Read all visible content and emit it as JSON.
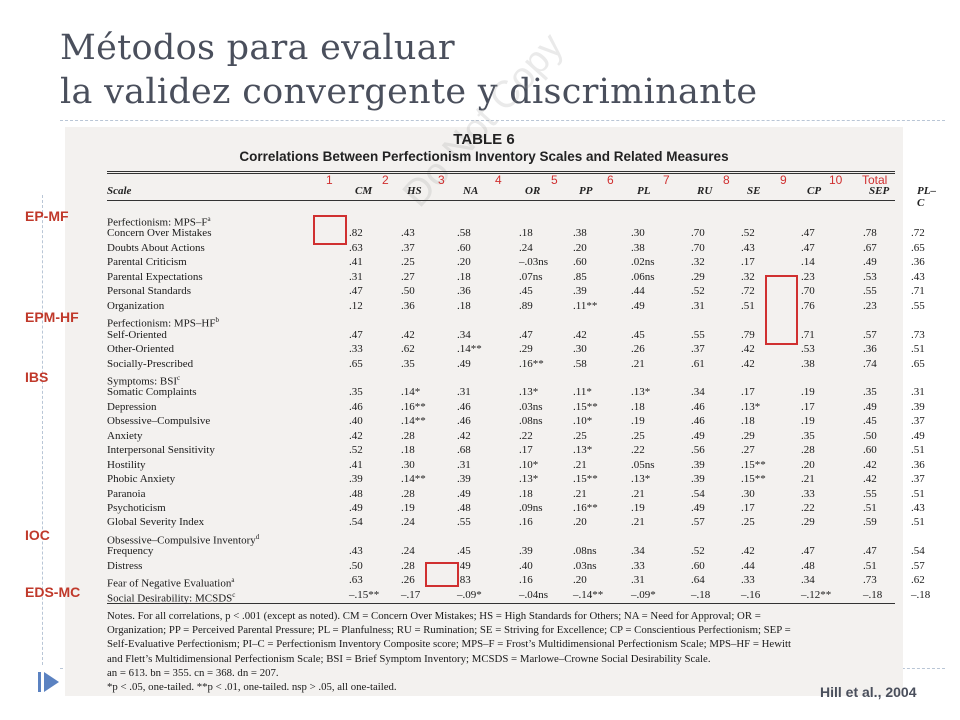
{
  "slide": {
    "title_line1": "Métodos para evaluar",
    "title_line2": "la validez convergente y discriminante",
    "citation": "Hill et al., 2004"
  },
  "overlay": {
    "column_numbers": [
      "1",
      "2",
      "3",
      "4",
      "5",
      "6",
      "7",
      "8",
      "9",
      "10",
      "Total"
    ],
    "side_labels": [
      "EP-MF",
      "EPM-HF",
      "IBS",
      "IOC",
      "EDS-MC"
    ]
  },
  "table": {
    "watermark": "Do Not Copy",
    "number": "TABLE 6",
    "title": "Correlations Between Perfectionism Inventory Scales and Related Measures",
    "columns": [
      "Scale",
      "CM",
      "HS",
      "NA",
      "OR",
      "PP",
      "PL",
      "RU",
      "SE",
      "CP",
      "SEP",
      "PL–C"
    ],
    "rows": [
      {
        "label": "Perfectionism: MPS–F",
        "sup": "a",
        "values": []
      },
      {
        "label": "Concern Over Mistakes",
        "values": [
          ".82",
          ".43",
          ".58",
          ".18",
          ".38",
          ".30",
          ".70",
          ".52",
          ".47",
          ".78",
          ".72"
        ]
      },
      {
        "label": "Doubts About Actions",
        "values": [
          ".63",
          ".37",
          ".60",
          ".24",
          ".20",
          ".38",
          ".70",
          ".43",
          ".47",
          ".67",
          ".65"
        ]
      },
      {
        "label": "Parental Criticism",
        "values": [
          ".41",
          ".25",
          ".20",
          "–.03ns",
          ".60",
          ".02ns",
          ".32",
          ".17",
          ".14",
          ".49",
          ".36"
        ]
      },
      {
        "label": "Parental Expectations",
        "values": [
          ".31",
          ".27",
          ".18",
          ".07ns",
          ".85",
          ".06ns",
          ".29",
          ".32",
          ".23",
          ".53",
          ".43"
        ]
      },
      {
        "label": "Personal Standards",
        "values": [
          ".47",
          ".50",
          ".36",
          ".45",
          ".39",
          ".44",
          ".52",
          ".72",
          ".70",
          ".55",
          ".71"
        ]
      },
      {
        "label": "Organization",
        "values": [
          ".12",
          ".36",
          ".18",
          ".89",
          ".11**",
          ".49",
          ".31",
          ".51",
          ".76",
          ".23",
          ".55"
        ]
      },
      {
        "label": "Perfectionism: MPS–HF",
        "sup": "b",
        "values": []
      },
      {
        "label": "Self-Oriented",
        "values": [
          ".47",
          ".42",
          ".34",
          ".47",
          ".42",
          ".45",
          ".55",
          ".79",
          ".71",
          ".57",
          ".73"
        ]
      },
      {
        "label": "Other-Oriented",
        "values": [
          ".33",
          ".62",
          ".14**",
          ".29",
          ".30",
          ".26",
          ".37",
          ".42",
          ".53",
          ".36",
          ".51"
        ]
      },
      {
        "label": "Socially-Prescribed",
        "values": [
          ".65",
          ".35",
          ".49",
          ".16**",
          ".58",
          ".21",
          ".61",
          ".42",
          ".38",
          ".74",
          ".65"
        ]
      },
      {
        "label": "Symptoms: BSI",
        "sup": "c",
        "values": []
      },
      {
        "label": "Somatic Complaints",
        "values": [
          ".35",
          ".14*",
          ".31",
          ".13*",
          ".11*",
          ".13*",
          ".34",
          ".17",
          ".19",
          ".35",
          ".31"
        ]
      },
      {
        "label": "Depression",
        "values": [
          ".46",
          ".16**",
          ".46",
          ".03ns",
          ".15**",
          ".18",
          ".46",
          ".13*",
          ".17",
          ".49",
          ".39"
        ]
      },
      {
        "label": "Obsessive–Compulsive",
        "values": [
          ".40",
          ".14**",
          ".46",
          ".08ns",
          ".10*",
          ".19",
          ".46",
          ".18",
          ".19",
          ".45",
          ".37"
        ]
      },
      {
        "label": "Anxiety",
        "values": [
          ".42",
          ".28",
          ".42",
          ".22",
          ".25",
          ".25",
          ".49",
          ".29",
          ".35",
          ".50",
          ".49"
        ]
      },
      {
        "label": "Interpersonal Sensitivity",
        "values": [
          ".52",
          ".18",
          ".68",
          ".17",
          ".13*",
          ".22",
          ".56",
          ".27",
          ".28",
          ".60",
          ".51"
        ]
      },
      {
        "label": "Hostility",
        "values": [
          ".41",
          ".30",
          ".31",
          ".10*",
          ".21",
          ".05ns",
          ".39",
          ".15**",
          ".20",
          ".42",
          ".36"
        ]
      },
      {
        "label": "Phobic Anxiety",
        "values": [
          ".39",
          ".14**",
          ".39",
          ".13*",
          ".15**",
          ".13*",
          ".39",
          ".15**",
          ".21",
          ".42",
          ".37"
        ]
      },
      {
        "label": "Paranoia",
        "values": [
          ".48",
          ".28",
          ".49",
          ".18",
          ".21",
          ".21",
          ".54",
          ".30",
          ".33",
          ".55",
          ".51"
        ]
      },
      {
        "label": "Psychoticism",
        "values": [
          ".49",
          ".19",
          ".48",
          ".09ns",
          ".16**",
          ".19",
          ".49",
          ".17",
          ".22",
          ".51",
          ".43"
        ]
      },
      {
        "label": "Global Severity Index",
        "values": [
          ".54",
          ".24",
          ".55",
          ".16",
          ".20",
          ".21",
          ".57",
          ".25",
          ".29",
          ".59",
          ".51"
        ]
      },
      {
        "label": "Obsessive–Compulsive Inventory",
        "sup": "d",
        "values": []
      },
      {
        "label": "Frequency",
        "values": [
          ".43",
          ".24",
          ".45",
          ".39",
          ".08ns",
          ".34",
          ".52",
          ".42",
          ".47",
          ".47",
          ".54"
        ]
      },
      {
        "label": "Distress",
        "values": [
          ".50",
          ".28",
          ".49",
          ".40",
          ".03ns",
          ".33",
          ".60",
          ".44",
          ".48",
          ".51",
          ".57"
        ]
      },
      {
        "label": "Fear of Negative Evaluation",
        "sup": "a",
        "values": [
          ".63",
          ".26",
          ".83",
          ".16",
          ".20",
          ".31",
          ".64",
          ".33",
          ".34",
          ".73",
          ".62"
        ]
      },
      {
        "label": "Social Desirability: MCSDS",
        "sup": "c",
        "values": [
          "–.15**",
          "–.17",
          "–.09*",
          "–.04ns",
          "–.14**",
          "–.09*",
          "–.18",
          "–.16",
          "–.12**",
          "–.18",
          "–.18"
        ]
      }
    ],
    "notes": [
      "Notes. For all correlations, p < .001 (except as noted). CM = Concern Over Mistakes; HS = High Standards for Others; NA = Need for Approval; OR =",
      "Organization; PP = Perceived Parental Pressure; PL = Planfulness; RU = Rumination; SE = Striving for Excellence; CP = Conscientious Perfectionism; SEP =",
      "Self-Evaluative Perfectionism; PI–C = Perfectionism Inventory Composite score; MPS–F = Frost’s Multidimensional Perfectionism Scale; MPS–HF = Hewitt",
      "and Flett’s Multidimensional Perfectionism Scale; BSI = Brief Symptom Inventory; MCSDS = Marlowe–Crowne Social Desirability Scale.",
      "an = 613. bn = 355. cn = 368. dn = 207.",
      "*p < .05, one-tailed. **p < .01, one-tailed. nsp > .05, all one-tailed."
    ]
  }
}
